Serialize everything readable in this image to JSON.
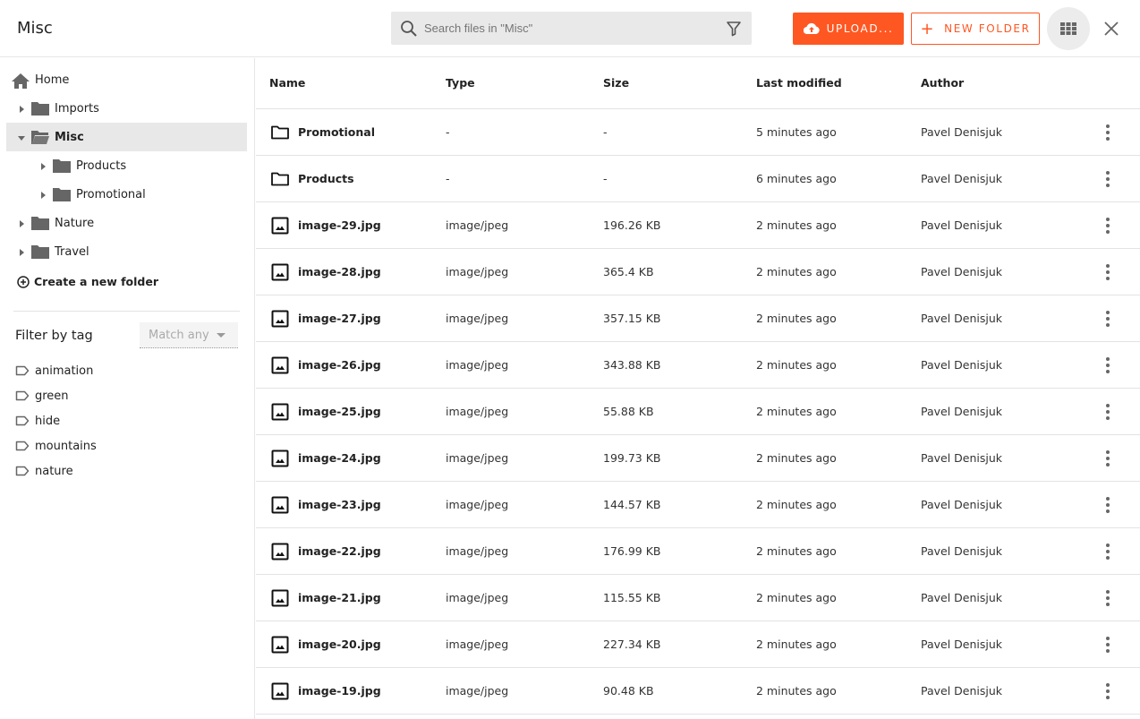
{
  "header": {
    "title": "Misc",
    "search_placeholder": "Search files in \"Misc\"",
    "upload_label": "UPLOAD...",
    "new_folder_label": "NEW FOLDER"
  },
  "colors": {
    "accent": "#ff5722"
  },
  "sidebar": {
    "tree": [
      {
        "label": "Home",
        "icon": "home-icon",
        "level": 0
      },
      {
        "label": "Imports",
        "icon": "folder-icon",
        "level": 0,
        "expanded": false
      },
      {
        "label": "Misc",
        "icon": "folder-open-icon",
        "level": 0,
        "expanded": true,
        "selected": true
      },
      {
        "label": "Products",
        "icon": "folder-icon",
        "level": 1,
        "expanded": false
      },
      {
        "label": "Promotional",
        "icon": "folder-icon",
        "level": 1,
        "expanded": false
      },
      {
        "label": "Nature",
        "icon": "folder-icon",
        "level": 0,
        "expanded": false
      },
      {
        "label": "Travel",
        "icon": "folder-icon",
        "level": 0,
        "expanded": false
      }
    ],
    "create_folder_label": "Create a new folder",
    "filter_label": "Filter by tag",
    "match_value": "Match any",
    "tags": [
      "animation",
      "green",
      "hide",
      "mountains",
      "nature"
    ]
  },
  "table": {
    "columns": [
      "Name",
      "Type",
      "Size",
      "Last modified",
      "Author"
    ],
    "rows": [
      {
        "kind": "folder",
        "name": "Promotional",
        "type": "-",
        "size": "-",
        "modified": "5 minutes ago",
        "author": "Pavel Denisjuk"
      },
      {
        "kind": "folder",
        "name": "Products",
        "type": "-",
        "size": "-",
        "modified": "6 minutes ago",
        "author": "Pavel Denisjuk"
      },
      {
        "kind": "image",
        "name": "image-29.jpg",
        "type": "image/jpeg",
        "size": "196.26 KB",
        "modified": "2 minutes ago",
        "author": "Pavel Denisjuk"
      },
      {
        "kind": "image",
        "name": "image-28.jpg",
        "type": "image/jpeg",
        "size": "365.4 KB",
        "modified": "2 minutes ago",
        "author": "Pavel Denisjuk"
      },
      {
        "kind": "image",
        "name": "image-27.jpg",
        "type": "image/jpeg",
        "size": "357.15 KB",
        "modified": "2 minutes ago",
        "author": "Pavel Denisjuk"
      },
      {
        "kind": "image",
        "name": "image-26.jpg",
        "type": "image/jpeg",
        "size": "343.88 KB",
        "modified": "2 minutes ago",
        "author": "Pavel Denisjuk"
      },
      {
        "kind": "image",
        "name": "image-25.jpg",
        "type": "image/jpeg",
        "size": "55.88 KB",
        "modified": "2 minutes ago",
        "author": "Pavel Denisjuk"
      },
      {
        "kind": "image",
        "name": "image-24.jpg",
        "type": "image/jpeg",
        "size": "199.73 KB",
        "modified": "2 minutes ago",
        "author": "Pavel Denisjuk"
      },
      {
        "kind": "image",
        "name": "image-23.jpg",
        "type": "image/jpeg",
        "size": "144.57 KB",
        "modified": "2 minutes ago",
        "author": "Pavel Denisjuk"
      },
      {
        "kind": "image",
        "name": "image-22.jpg",
        "type": "image/jpeg",
        "size": "176.99 KB",
        "modified": "2 minutes ago",
        "author": "Pavel Denisjuk"
      },
      {
        "kind": "image",
        "name": "image-21.jpg",
        "type": "image/jpeg",
        "size": "115.55 KB",
        "modified": "2 minutes ago",
        "author": "Pavel Denisjuk"
      },
      {
        "kind": "image",
        "name": "image-20.jpg",
        "type": "image/jpeg",
        "size": "227.34 KB",
        "modified": "2 minutes ago",
        "author": "Pavel Denisjuk"
      },
      {
        "kind": "image",
        "name": "image-19.jpg",
        "type": "image/jpeg",
        "size": "90.48 KB",
        "modified": "2 minutes ago",
        "author": "Pavel Denisjuk"
      }
    ]
  }
}
